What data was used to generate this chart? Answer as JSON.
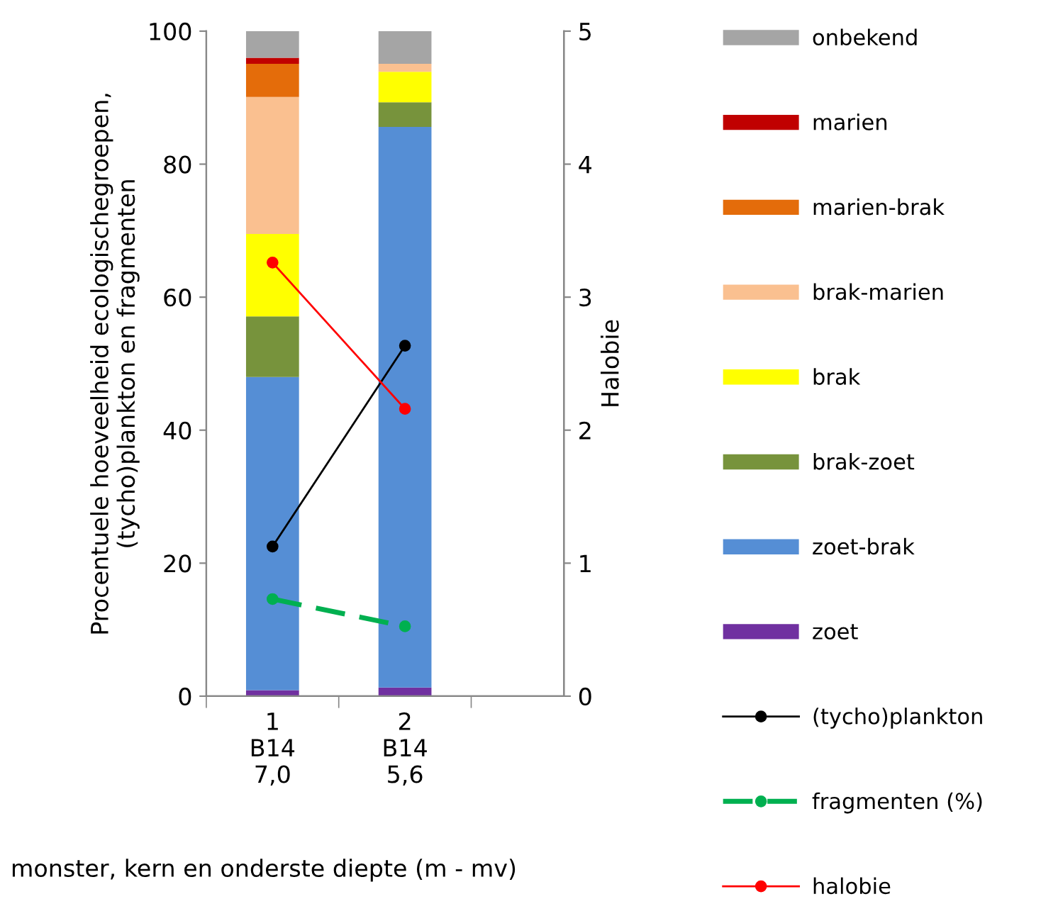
{
  "chart_data": {
    "type": "bar",
    "stacked": true,
    "categories": [
      "1\nB14\n7,0",
      "2\nB14\n5,6",
      null
    ],
    "xlabel": "monster, kern en onderste diepte (m - mv)",
    "ylabel": "Procentuele hoeveelheid ecologischegroepen,\n(tycho)plankton en fragmenten",
    "y2label": "Halobie",
    "ylim": [
      0,
      100
    ],
    "yticks": [
      0,
      20,
      40,
      60,
      80,
      100
    ],
    "y2lim": [
      0,
      5
    ],
    "y2ticks": [
      0,
      1,
      2,
      3,
      4,
      5
    ],
    "grid": false,
    "legend": "right",
    "marker": "circle",
    "series": [
      {
        "name": "zoet",
        "color": "#7030a0",
        "values": [
          0.9,
          1.3,
          null
        ]
      },
      {
        "name": "zoet-brak",
        "color": "#558ed5",
        "values": [
          47.1,
          84.3,
          null
        ]
      },
      {
        "name": "brak-zoet",
        "color": "#77933c",
        "values": [
          9.1,
          3.7,
          null
        ]
      },
      {
        "name": "brak",
        "color": "#ffff00",
        "values": [
          12.4,
          4.6,
          null
        ]
      },
      {
        "name": "brak-marien",
        "color": "#fac090",
        "values": [
          20.6,
          1.2,
          null
        ]
      },
      {
        "name": "marien-brak",
        "color": "#e46c0a",
        "values": [
          5.0,
          0,
          null
        ]
      },
      {
        "name": "marien",
        "color": "#c00000",
        "values": [
          0.9,
          0,
          null
        ]
      },
      {
        "name": "onbekend",
        "color": "#a5a5a5",
        "values": [
          4.0,
          4.9,
          null
        ]
      },
      {
        "name": "(tycho)plankton",
        "type": "line",
        "color": "#000000",
        "line_style": "solid",
        "values": [
          22.5,
          52.7,
          null
        ]
      },
      {
        "name": "fragmenten (%)",
        "type": "line",
        "color": "#00b050",
        "line_style": "dashed",
        "values": [
          14.6,
          10.5,
          null
        ]
      },
      {
        "name": "halobie",
        "type": "line",
        "axis": "y2",
        "color": "#ff0000",
        "line_style": "solid",
        "values": [
          3.26,
          2.16,
          null
        ]
      }
    ]
  }
}
